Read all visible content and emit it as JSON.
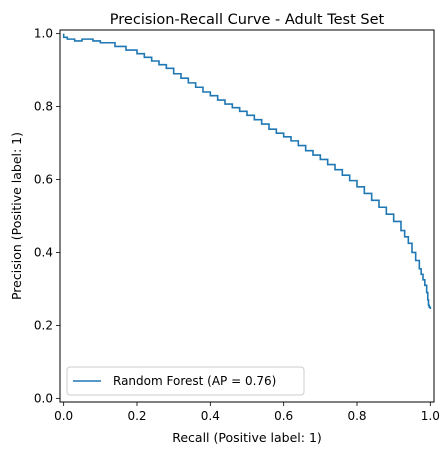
{
  "chart_data": {
    "type": "line",
    "title": "Precision-Recall Curve - Adult Test Set",
    "xlabel": "Recall (Positive label: 1)",
    "ylabel": "Precision (Positive label: 1)",
    "xlim": [
      -0.01,
      1.01
    ],
    "ylim": [
      -0.01,
      1.01
    ],
    "xticks": [
      "0.0",
      "0.2",
      "0.4",
      "0.6",
      "0.8",
      "1.0"
    ],
    "xtick_values": [
      0,
      0.2,
      0.4,
      0.6,
      0.8,
      1.0
    ],
    "yticks": [
      "0.0",
      "0.2",
      "0.4",
      "0.6",
      "0.8",
      "1.0"
    ],
    "ytick_values": [
      0,
      0.2,
      0.4,
      0.6,
      0.8,
      1.0
    ],
    "grid": false,
    "legend_position": "lower-left",
    "line_color": "#1f77b4",
    "series": [
      {
        "name": "Random Forest (AP = 0.76)",
        "x": [
          0.0,
          0.0,
          0.005,
          0.01,
          0.02,
          0.03,
          0.04,
          0.05,
          0.08,
          0.1,
          0.14,
          0.17,
          0.2,
          0.22,
          0.24,
          0.26,
          0.28,
          0.3,
          0.32,
          0.34,
          0.36,
          0.38,
          0.4,
          0.42,
          0.44,
          0.46,
          0.48,
          0.5,
          0.52,
          0.54,
          0.56,
          0.58,
          0.6,
          0.62,
          0.64,
          0.66,
          0.68,
          0.7,
          0.72,
          0.74,
          0.76,
          0.78,
          0.8,
          0.82,
          0.84,
          0.86,
          0.88,
          0.9,
          0.92,
          0.93,
          0.94,
          0.95,
          0.96,
          0.97,
          0.975,
          0.98,
          0.985,
          0.99,
          0.993,
          0.995,
          0.997,
          1.0
        ],
        "y": [
          1.0,
          0.99,
          0.99,
          0.985,
          0.985,
          0.98,
          0.98,
          0.985,
          0.98,
          0.975,
          0.965,
          0.955,
          0.945,
          0.935,
          0.925,
          0.915,
          0.905,
          0.89,
          0.878,
          0.865,
          0.853,
          0.84,
          0.83,
          0.818,
          0.807,
          0.797,
          0.787,
          0.776,
          0.764,
          0.752,
          0.738,
          0.727,
          0.717,
          0.706,
          0.693,
          0.679,
          0.667,
          0.655,
          0.641,
          0.627,
          0.612,
          0.597,
          0.58,
          0.562,
          0.543,
          0.524,
          0.505,
          0.485,
          0.46,
          0.443,
          0.425,
          0.4,
          0.378,
          0.355,
          0.34,
          0.325,
          0.31,
          0.29,
          0.27,
          0.255,
          0.25,
          0.245
        ]
      }
    ]
  }
}
